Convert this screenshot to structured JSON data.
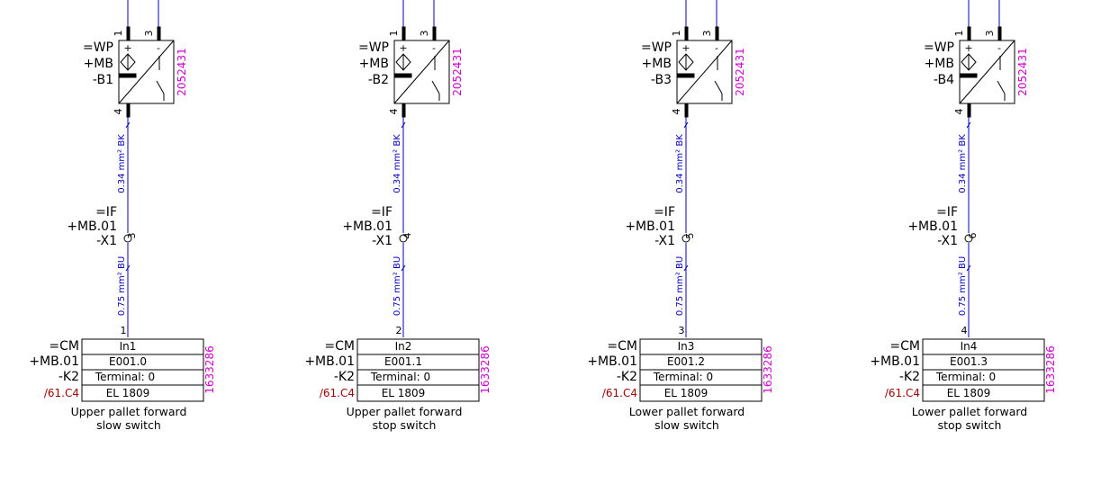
{
  "colors": {
    "wire": "#0000c0",
    "line": "#000000",
    "article": "#d000d0",
    "crossref": "#a00000"
  },
  "icons": [
    "proximity-sensor-icon",
    "terminal-connection-icon",
    "wire-break-mark-icon"
  ],
  "sensor_pins": {
    "pos": "1",
    "neg": "3",
    "out": "4",
    "plus": "+",
    "minus": "-"
  },
  "wire_labels": {
    "upper": "0.34 mm² BK",
    "lower": "0.75 mm² BU"
  },
  "circuits": [
    {
      "sensor": {
        "function": "=WP",
        "location": "+MB",
        "tag": "-B1",
        "article": "2052431"
      },
      "terminal": {
        "function": "=IF",
        "location": "+MB.01",
        "tag": "-X1",
        "number": "3"
      },
      "io": {
        "function": "=CM",
        "location": "+MB.01",
        "tag": "-K2",
        "xref": "/61.C4",
        "pin": "1",
        "channel": "In1",
        "address": "E001.0",
        "terminal": "Terminal: 0",
        "module": "EL 1809",
        "article": "1633286"
      },
      "description": [
        "Upper pallet forward",
        "slow switch"
      ]
    },
    {
      "sensor": {
        "function": "=WP",
        "location": "+MB",
        "tag": "-B2",
        "article": "2052431"
      },
      "terminal": {
        "function": "=IF",
        "location": "+MB.01",
        "tag": "-X1",
        "number": "4"
      },
      "io": {
        "function": "=CM",
        "location": "+MB.01",
        "tag": "-K2",
        "xref": "/61.C4",
        "pin": "2",
        "channel": "In2",
        "address": "E001.1",
        "terminal": "Terminal: 0",
        "module": "EL 1809",
        "article": "1633286"
      },
      "description": [
        "Upper pallet forward",
        "stop switch"
      ]
    },
    {
      "sensor": {
        "function": "=WP",
        "location": "+MB",
        "tag": "-B3",
        "article": "2052431"
      },
      "terminal": {
        "function": "=IF",
        "location": "+MB.01",
        "tag": "-X1",
        "number": "5"
      },
      "io": {
        "function": "=CM",
        "location": "+MB.01",
        "tag": "-K2",
        "xref": "/61.C4",
        "pin": "3",
        "channel": "In3",
        "address": "E001.2",
        "terminal": "Terminal: 0",
        "module": "EL 1809",
        "article": "1633286"
      },
      "description": [
        "Lower pallet forward",
        "slow switch"
      ]
    },
    {
      "sensor": {
        "function": "=WP",
        "location": "+MB",
        "tag": "-B4",
        "article": "2052431"
      },
      "terminal": {
        "function": "=IF",
        "location": "+MB.01",
        "tag": "-X1",
        "number": "6"
      },
      "io": {
        "function": "=CM",
        "location": "+MB.01",
        "tag": "-K2",
        "xref": "/61.C4",
        "pin": "4",
        "channel": "In4",
        "address": "E001.3",
        "terminal": "Terminal: 0",
        "module": "EL 1809",
        "article": "1633286"
      },
      "description": [
        "Lower pallet forward",
        "stop switch"
      ]
    }
  ]
}
